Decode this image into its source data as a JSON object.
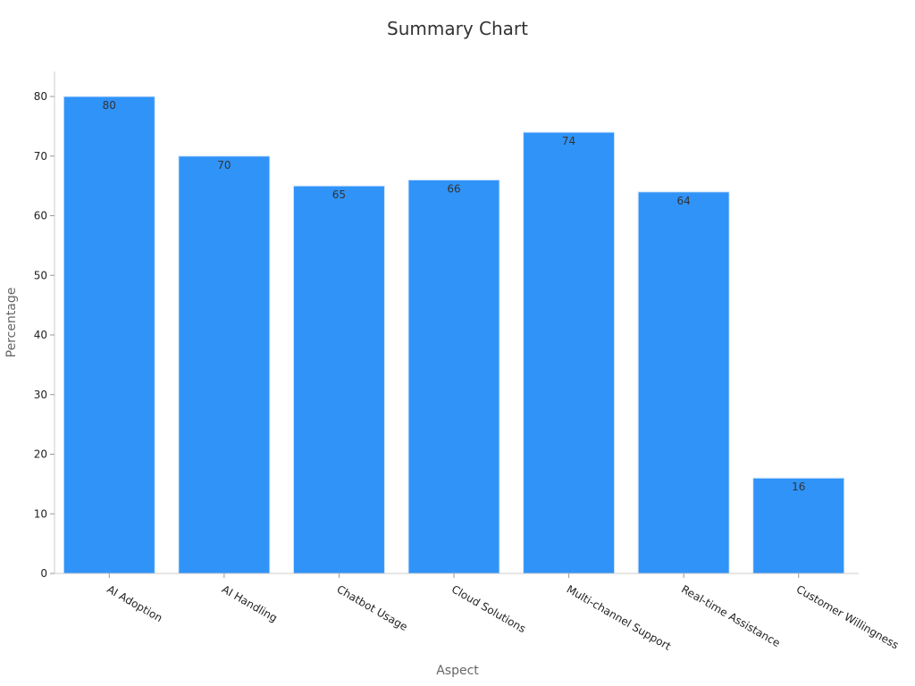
{
  "chart_data": {
    "type": "bar",
    "title": "Summary Chart",
    "xlabel": "Aspect",
    "ylabel": "Percentage",
    "categories": [
      "AI Adoption",
      "AI Handling",
      "Chatbot Usage",
      "Cloud Solutions",
      "Multi-channel Support",
      "Real-time Assistance",
      "Customer Willingness"
    ],
    "values": [
      80,
      70,
      65,
      66,
      74,
      64,
      16
    ],
    "ylim": [
      0,
      84
    ],
    "yticks": [
      0,
      10,
      20,
      30,
      40,
      50,
      60,
      70,
      80
    ],
    "grid": false,
    "legend": "none",
    "bar_color": "#3093f8"
  }
}
